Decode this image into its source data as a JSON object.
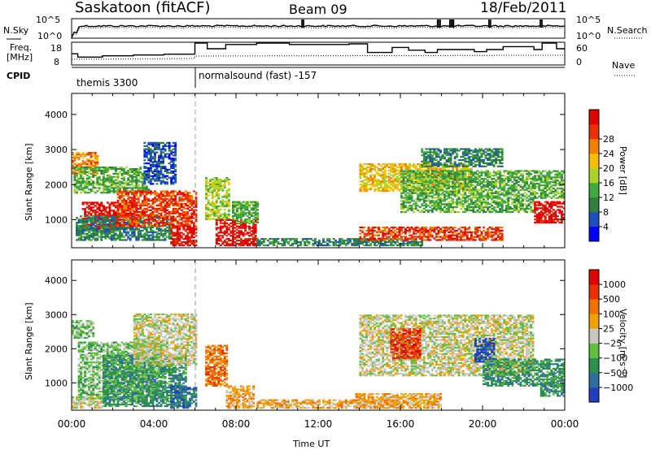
{
  "header": {
    "station": "Saskatoon (fitACF)",
    "beam": "Beam 09",
    "date": "18/Feb/2011"
  },
  "noise_panel": {
    "left_label": "N.Sky",
    "right_label": "N.Search",
    "left_ticks": [
      "10^5",
      "10^0"
    ],
    "right_ticks": [
      "10^5",
      "10^0"
    ]
  },
  "freq_panel": {
    "left_label_1": "Freq.",
    "left_label_2": "[MHz]",
    "right_label": "Nave",
    "left_ticks": [
      "18",
      "8"
    ],
    "right_ticks": [
      "60",
      "0"
    ],
    "freq_steps": [
      {
        "t": 0.0,
        "v": 12.6
      },
      {
        "t": 0.3,
        "v": 11.0
      },
      {
        "t": 1.5,
        "v": 11.6
      },
      {
        "t": 3.0,
        "v": 12.0
      },
      {
        "t": 4.5,
        "v": 12.4
      },
      {
        "t": 6.0,
        "v": 18.5
      },
      {
        "t": 6.6,
        "v": 15.0
      },
      {
        "t": 7.5,
        "v": 17.0
      },
      {
        "t": 9.0,
        "v": 18.5
      },
      {
        "t": 10.6,
        "v": 17.0
      },
      {
        "t": 13.5,
        "v": 17.3
      },
      {
        "t": 14.4,
        "v": 13.2
      },
      {
        "t": 15.6,
        "v": 15.6
      },
      {
        "t": 16.4,
        "v": 14.3
      },
      {
        "t": 17.2,
        "v": 13.2
      },
      {
        "t": 17.8,
        "v": 14.6
      },
      {
        "t": 19.6,
        "v": 13.6
      },
      {
        "t": 20.2,
        "v": 14.6
      },
      {
        "t": 21.0,
        "v": 16.0
      },
      {
        "t": 22.5,
        "v": 14.6
      },
      {
        "t": 22.9,
        "v": 18.5
      },
      {
        "t": 23.6,
        "v": 15.0
      },
      {
        "t": 24.0,
        "v": 15.0
      }
    ]
  },
  "cpid": {
    "label": "CPID",
    "segments": [
      {
        "start": 0.0,
        "end": 6.0,
        "name": "themis 3300"
      },
      {
        "start": 6.0,
        "end": 24.0,
        "name": "normalsound (fast) -157"
      }
    ]
  },
  "time_axis": {
    "label": "Time UT",
    "ticks": [
      "00:00",
      "04:00",
      "08:00",
      "12:00",
      "16:00",
      "20:00",
      "00:00"
    ]
  },
  "chart_data": [
    {
      "type": "heatmap",
      "parameter": "Power",
      "ylabel": "Slant Range [km]",
      "xlabel": "",
      "x_range_hours": [
        0,
        24
      ],
      "ylim": [
        200,
        4600
      ],
      "yticks": [
        "1000",
        "2000",
        "3000",
        "4000"
      ],
      "colorbar": {
        "label": "Power [dB]",
        "ticks": [
          "4",
          "8",
          "12",
          "16",
          "20",
          "24",
          "28"
        ],
        "colors": [
          "#0000ff",
          "#1f4fbf",
          "#2f7f3f",
          "#3fa83f",
          "#aad42a",
          "#f5c000",
          "#f08000",
          "#e83000",
          "#e00000"
        ]
      },
      "regions": [
        {
          "t0": 0.0,
          "t1": 1.3,
          "r0": 2300,
          "r1": 2900,
          "level": 6
        },
        {
          "t0": 0.1,
          "t1": 3.8,
          "r0": 1750,
          "r1": 2500,
          "level": 3
        },
        {
          "t0": 0.5,
          "t1": 3.2,
          "r0": 700,
          "r1": 1500,
          "level": 8
        },
        {
          "t0": 0.2,
          "t1": 4.8,
          "r0": 400,
          "r1": 1100,
          "level": 2
        },
        {
          "t0": 2.2,
          "t1": 6.0,
          "r0": 800,
          "r1": 1800,
          "level": 7
        },
        {
          "t0": 4.8,
          "t1": 6.0,
          "r0": 250,
          "r1": 800,
          "level": 8
        },
        {
          "t0": 3.5,
          "t1": 5.0,
          "r0": 2000,
          "r1": 3200,
          "level": 1
        },
        {
          "t0": 6.5,
          "t1": 7.6,
          "r0": 1000,
          "r1": 2200,
          "level": 4
        },
        {
          "t0": 7.0,
          "t1": 8.9,
          "r0": 250,
          "r1": 1000,
          "level": 8
        },
        {
          "t0": 7.8,
          "t1": 9.0,
          "r0": 900,
          "r1": 1500,
          "level": 3
        },
        {
          "t0": 9.0,
          "t1": 17.0,
          "r0": 250,
          "r1": 450,
          "level": 2
        },
        {
          "t0": 14.0,
          "t1": 21.0,
          "r0": 400,
          "r1": 800,
          "level": 7
        },
        {
          "t0": 14.0,
          "t1": 19.5,
          "r0": 1800,
          "r1": 2600,
          "level": 5
        },
        {
          "t0": 16.0,
          "t1": 22.5,
          "r0": 1200,
          "r1": 2400,
          "level": 3
        },
        {
          "t0": 17.0,
          "t1": 21.0,
          "r0": 2500,
          "r1": 3000,
          "level": 2
        },
        {
          "t0": 22.5,
          "t1": 24.0,
          "r0": 900,
          "r1": 1500,
          "level": 8
        },
        {
          "t0": 22.5,
          "t1": 24.0,
          "r0": 1600,
          "r1": 2400,
          "level": 3
        }
      ]
    },
    {
      "type": "heatmap",
      "parameter": "Velocity",
      "ylabel": "Slant Range [km]",
      "xlabel": "Time UT",
      "x_range_hours": [
        0,
        24
      ],
      "ylim": [
        200,
        4600
      ],
      "yticks": [
        "1000",
        "2000",
        "3000",
        "4000"
      ],
      "colorbar": {
        "label": "Velocity [m s⁻¹]",
        "ticks": [
          "1000",
          "500",
          "100",
          "25",
          "−25",
          "−100",
          "−500",
          "−1000"
        ],
        "colors": [
          "#2040c0",
          "#2f6fa0",
          "#2f8f4f",
          "#5fbf3f",
          "#c8c8c0",
          "#f0a000",
          "#f07000",
          "#e83000",
          "#e00000"
        ]
      },
      "regions": [
        {
          "t0": 0.0,
          "t1": 1.0,
          "r0": 2300,
          "r1": 2800,
          "level": 3
        },
        {
          "t0": 0.3,
          "t1": 4.5,
          "r0": 500,
          "r1": 2200,
          "level": 3
        },
        {
          "t0": 1.5,
          "t1": 5.5,
          "r0": 300,
          "r1": 1800,
          "level": 2
        },
        {
          "t0": 3.0,
          "t1": 6.0,
          "r0": 1500,
          "r1": 3000,
          "level": 4
        },
        {
          "t0": 4.8,
          "t1": 6.0,
          "r0": 250,
          "r1": 900,
          "level": 1
        },
        {
          "t0": 0.0,
          "t1": 1.5,
          "r0": 250,
          "r1": 600,
          "level": 4
        },
        {
          "t0": 6.5,
          "t1": 7.5,
          "r0": 900,
          "r1": 2100,
          "level": 6
        },
        {
          "t0": 7.5,
          "t1": 8.8,
          "r0": 250,
          "r1": 900,
          "level": 5
        },
        {
          "t0": 9.0,
          "t1": 16.0,
          "r0": 250,
          "r1": 500,
          "level": 5
        },
        {
          "t0": 13.8,
          "t1": 18.0,
          "r0": 250,
          "r1": 700,
          "level": 5
        },
        {
          "t0": 14.0,
          "t1": 22.5,
          "r0": 1200,
          "r1": 3000,
          "level": 4
        },
        {
          "t0": 15.5,
          "t1": 17.0,
          "r0": 1700,
          "r1": 2600,
          "level": 7
        },
        {
          "t0": 19.6,
          "t1": 20.6,
          "r0": 1600,
          "r1": 2300,
          "level": 0
        },
        {
          "t0": 20.0,
          "t1": 24.0,
          "r0": 900,
          "r1": 1700,
          "level": 2
        },
        {
          "t0": 22.8,
          "t1": 24.0,
          "r0": 600,
          "r1": 1000,
          "level": 2
        }
      ]
    }
  ]
}
